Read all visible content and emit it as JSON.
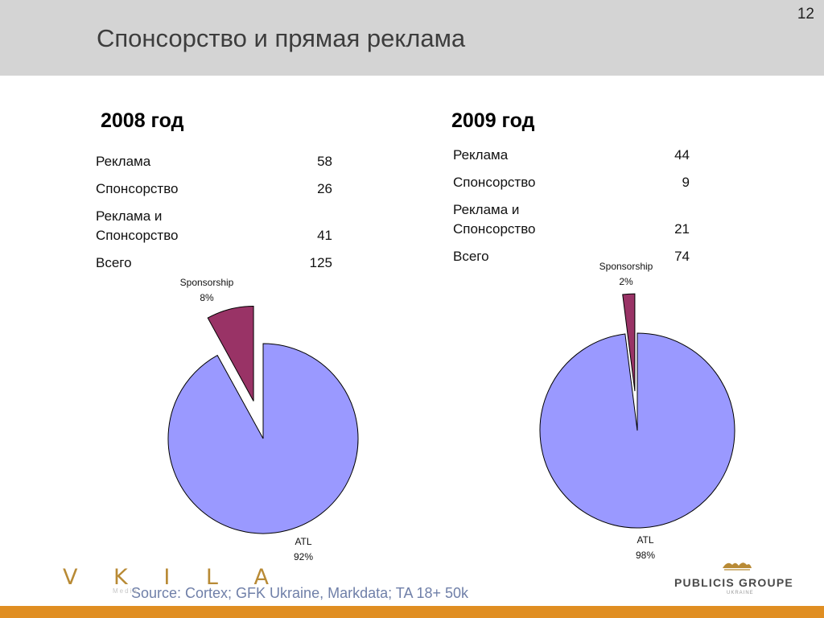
{
  "page": {
    "title": "Спонсорство и прямая реклама",
    "page_number": "12",
    "source": "Source: Cortex; GFK Ukraine, Markdata; TA 18+ 50k"
  },
  "colors": {
    "header_band": "#d4d4d4",
    "atl_slice": "#9a99ff",
    "sponsorship_slice": "#993366",
    "footer_bar": "#e08e22",
    "source_text": "#6f7fa8"
  },
  "panels": [
    {
      "year_label": "2008 год",
      "rows": [
        {
          "label": "Реклама",
          "value": "58"
        },
        {
          "label": "Спонсорство",
          "value": "26"
        },
        {
          "label": "Реклама и\nСпонсорство",
          "value": "41"
        },
        {
          "label": "Всего",
          "value": "125"
        }
      ]
    },
    {
      "year_label": "2009 год",
      "rows": [
        {
          "label": "Реклама",
          "value": "44"
        },
        {
          "label": "Спонсорство",
          "value": "9"
        },
        {
          "label": "Реклама и\nСпонсорство",
          "value": "21"
        },
        {
          "label": "Всего",
          "value": "74"
        }
      ]
    }
  ],
  "chart_data": [
    {
      "type": "pie",
      "title": "2008 год",
      "slices": [
        {
          "name": "ATL",
          "value": 92,
          "label": "92%",
          "exploded": false
        },
        {
          "name": "Sponsorship",
          "value": 8,
          "label": "8%",
          "exploded": true
        }
      ]
    },
    {
      "type": "pie",
      "title": "2009 год",
      "slices": [
        {
          "name": "ATL",
          "value": 98,
          "label": "98%",
          "exploded": false
        },
        {
          "name": "Sponsorship",
          "value": 2,
          "label": "2%",
          "exploded": true
        }
      ]
    }
  ],
  "logos": {
    "left_brand": "V K I L A",
    "left_brand_sub": "Media",
    "right_brand": "PUBLICIS GROUPE",
    "right_brand_sub": "UKRAINE"
  }
}
